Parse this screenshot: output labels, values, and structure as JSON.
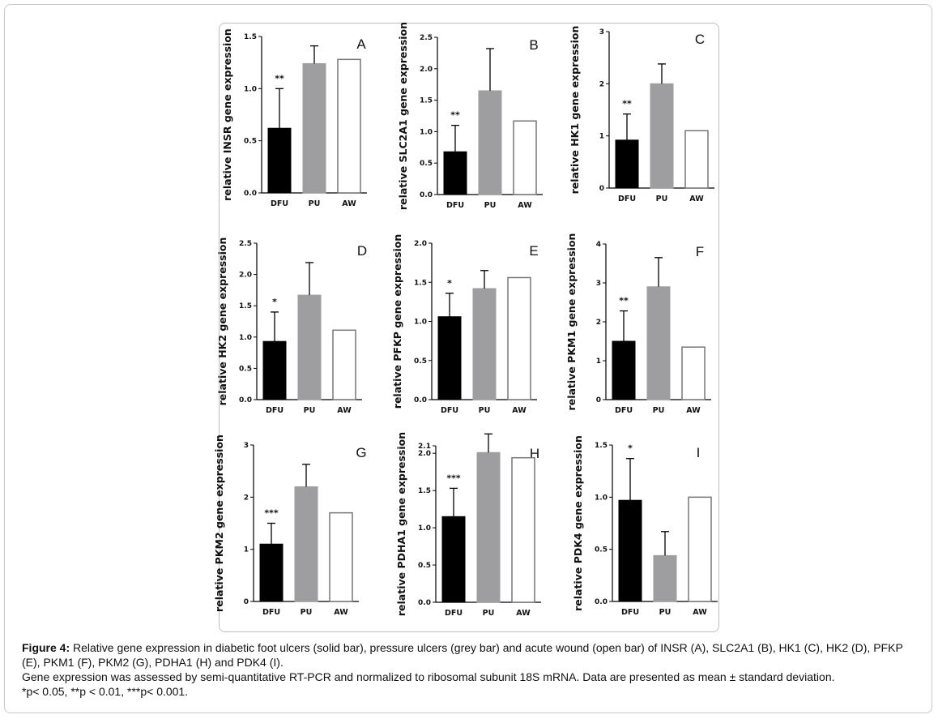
{
  "categories": [
    "DFU",
    "PU",
    "AW"
  ],
  "colors": {
    "DFU": "#000000",
    "PU": "#9e9ea0",
    "AW": "#ffffff",
    "AW_stroke": "#777777"
  },
  "chart_data": [
    {
      "type": "bar",
      "panel": "A",
      "ylabel": "relative INSR gene expression",
      "categories": [
        "DFU",
        "PU",
        "AW"
      ],
      "values": [
        0.62,
        1.24,
        1.28
      ],
      "errors": [
        0.38,
        0.17,
        0
      ],
      "significance": [
        "**",
        "",
        ""
      ],
      "ylim": [
        0,
        1.5
      ],
      "yticks": [
        "0.0",
        "0.5",
        "1.0",
        "1.5"
      ]
    },
    {
      "type": "bar",
      "panel": "B",
      "ylabel": "relative SLC2A1 gene expression",
      "categories": [
        "DFU",
        "PU",
        "AW"
      ],
      "values": [
        0.68,
        1.65,
        1.17
      ],
      "errors": [
        0.42,
        0.67,
        0
      ],
      "significance": [
        "**",
        "",
        ""
      ],
      "ylim": [
        0,
        2.5
      ],
      "yticks": [
        "0.0",
        "0.5",
        "1.0",
        "1.5",
        "2.0",
        "2.5"
      ]
    },
    {
      "type": "bar",
      "panel": "C",
      "ylabel": "relative HK1 gene expression",
      "categories": [
        "DFU",
        "PU",
        "AW"
      ],
      "values": [
        0.92,
        2.0,
        1.1
      ],
      "errors": [
        0.5,
        0.38,
        0
      ],
      "significance": [
        "**",
        "",
        ""
      ],
      "ylim": [
        0,
        3
      ],
      "yticks": [
        "0",
        "1",
        "2",
        "3"
      ]
    },
    {
      "type": "bar",
      "panel": "D",
      "ylabel": "relative HK2 gene expression",
      "categories": [
        "DFU",
        "PU",
        "AW"
      ],
      "values": [
        0.93,
        1.67,
        1.11
      ],
      "errors": [
        0.47,
        0.52,
        0
      ],
      "significance": [
        "*",
        "",
        ""
      ],
      "ylim": [
        0,
        2.5
      ],
      "yticks": [
        "0.0",
        "0.5",
        "1.0",
        "1.5",
        "2.0",
        "2.5"
      ]
    },
    {
      "type": "bar",
      "panel": "E",
      "ylabel": "relative PFKP gene expression",
      "categories": [
        "DFU",
        "PU",
        "AW"
      ],
      "values": [
        1.06,
        1.42,
        1.56
      ],
      "errors": [
        0.3,
        0.23,
        0
      ],
      "significance": [
        "*",
        "",
        ""
      ],
      "ylim": [
        0,
        2
      ],
      "yticks": [
        "0.0",
        "0.5",
        "1.0",
        "1.5",
        "2.0"
      ]
    },
    {
      "type": "bar",
      "panel": "F",
      "ylabel": "relative PKM1 gene expression",
      "categories": [
        "DFU",
        "PU",
        "AW"
      ],
      "values": [
        1.5,
        2.9,
        1.35
      ],
      "errors": [
        0.78,
        0.75,
        0
      ],
      "significance": [
        "**",
        "",
        ""
      ],
      "ylim": [
        0,
        4
      ],
      "yticks": [
        "0",
        "1",
        "2",
        "3",
        "4"
      ]
    },
    {
      "type": "bar",
      "panel": "G",
      "ylabel": "relative PKM2 gene expression",
      "categories": [
        "DFU",
        "PU",
        "AW"
      ],
      "values": [
        1.1,
        2.2,
        1.7
      ],
      "errors": [
        0.4,
        0.43,
        0
      ],
      "significance": [
        "***",
        "",
        ""
      ],
      "ylim": [
        0,
        3
      ],
      "yticks": [
        "0",
        "1",
        "2",
        "3"
      ]
    },
    {
      "type": "bar",
      "panel": "H",
      "ylabel": "relative PDHA1 gene expression",
      "categories": [
        "DFU",
        "PU",
        "AW"
      ],
      "values": [
        1.15,
        2.01,
        1.94
      ],
      "errors": [
        0.38,
        0.25,
        0
      ],
      "significance": [
        "***",
        "",
        ""
      ],
      "ylim": [
        0,
        2.1
      ],
      "yticks": [
        "0.0",
        "0.5",
        "1.0",
        "1.5",
        "2.0",
        "2.1"
      ]
    },
    {
      "type": "bar",
      "panel": "I",
      "ylabel": "relative PDK4 gene expression",
      "categories": [
        "DFU",
        "PU",
        "AW"
      ],
      "values": [
        0.97,
        0.44,
        1.0
      ],
      "errors": [
        0.4,
        0.23,
        0
      ],
      "significance": [
        "*",
        "",
        ""
      ],
      "ylim": [
        0,
        1.5
      ],
      "yticks": [
        "0.0",
        "0.5",
        "1.0",
        "1.5"
      ]
    }
  ],
  "caption": {
    "lead": "Figure 4:",
    "line1": " Relative gene expression in diabetic foot ulcers (solid bar), pressure ulcers (grey bar) and acute wound (open bar) of INSR (A), SLC2A1 (B), HK1 (C), HK2 (D), PFKP (E), PKM1 (F), PKM2 (G), PDHA1 (H) and PDK4 (I).",
    "line2": "Gene expression was assessed by semi-quantitative RT-PCR and normalized to ribosomal subunit 18S mRNA. Data are presented as mean ± standard deviation.",
    "line3": "*p< 0.05, **p < 0.01, ***p< 0.001."
  }
}
